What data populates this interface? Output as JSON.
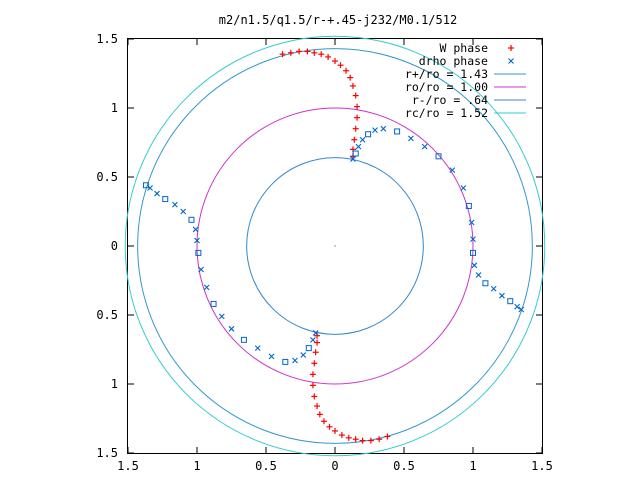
{
  "chart_data": {
    "type": "scatter",
    "title": "m2/n1.5/q1.5/r-+.45-j232/M0.1/512",
    "xlim": [
      -1.5,
      1.5
    ],
    "ylim": [
      -1.5,
      1.5
    ],
    "xticks": [
      -1.5,
      -1,
      -0.5,
      0,
      0.5,
      1,
      1.5
    ],
    "yticks": [
      -1.5,
      -1,
      -0.5,
      0,
      0.5,
      1,
      1.5
    ],
    "xtick_labels": [
      "1.5",
      "1",
      "0.5",
      "0",
      "0.5",
      "1",
      "1.5"
    ],
    "ytick_labels": [
      "1.5",
      "1",
      "0.5",
      "0",
      "0.5",
      "1",
      "1.5"
    ],
    "grid": false,
    "legend_position": "top-right",
    "circles": [
      {
        "name": "r+/ro = 1.43",
        "r": 1.43,
        "color": "#3399cc"
      },
      {
        "name": "ro/ro = 1.00",
        "r": 1.0,
        "color": "#cc33cc"
      },
      {
        "name": "r-/ro = .64",
        "r": 0.64,
        "color": "#3388cc"
      },
      {
        "name": "rc/ro = 1.52",
        "r": 1.52,
        "color": "#33cccc"
      }
    ],
    "series": [
      {
        "name": "W phase",
        "marker": "plus",
        "color": "#ff0000",
        "points": [
          [
            -0.38,
            1.39
          ],
          [
            -0.32,
            1.4
          ],
          [
            -0.26,
            1.41
          ],
          [
            -0.2,
            1.41
          ],
          [
            -0.15,
            1.4
          ],
          [
            -0.1,
            1.39
          ],
          [
            -0.05,
            1.37
          ],
          [
            0.0,
            1.34
          ],
          [
            0.04,
            1.31
          ],
          [
            0.08,
            1.27
          ],
          [
            0.11,
            1.22
          ],
          [
            0.13,
            1.16
          ],
          [
            0.15,
            1.09
          ],
          [
            0.16,
            1.01
          ],
          [
            0.16,
            0.93
          ],
          [
            0.15,
            0.85
          ],
          [
            0.14,
            0.77
          ],
          [
            0.13,
            0.7
          ],
          [
            0.13,
            0.65
          ],
          [
            0.38,
            -1.38
          ],
          [
            0.32,
            -1.4
          ],
          [
            0.26,
            -1.41
          ],
          [
            0.2,
            -1.41
          ],
          [
            0.15,
            -1.4
          ],
          [
            0.1,
            -1.39
          ],
          [
            0.05,
            -1.37
          ],
          [
            0.0,
            -1.34
          ],
          [
            -0.04,
            -1.31
          ],
          [
            -0.08,
            -1.27
          ],
          [
            -0.11,
            -1.22
          ],
          [
            -0.13,
            -1.16
          ],
          [
            -0.15,
            -1.09
          ],
          [
            -0.16,
            -1.01
          ],
          [
            -0.16,
            -0.93
          ],
          [
            -0.15,
            -0.85
          ],
          [
            -0.14,
            -0.77
          ],
          [
            -0.13,
            -0.7
          ],
          [
            -0.13,
            -0.65
          ]
        ]
      },
      {
        "name": "drho phase",
        "marker": "cross",
        "color": "#0066cc",
        "points": [
          [
            0.13,
            0.63
          ],
          [
            0.15,
            0.67
          ],
          [
            0.17,
            0.72
          ],
          [
            0.2,
            0.77
          ],
          [
            0.24,
            0.81
          ],
          [
            0.29,
            0.84
          ],
          [
            0.35,
            0.85
          ],
          [
            0.45,
            0.83
          ],
          [
            0.55,
            0.78
          ],
          [
            0.65,
            0.72
          ],
          [
            0.75,
            0.65
          ],
          [
            0.85,
            0.55
          ],
          [
            0.93,
            0.42
          ],
          [
            0.97,
            0.29
          ],
          [
            0.99,
            0.17
          ],
          [
            1.0,
            0.05
          ],
          [
            1.0,
            -0.05
          ],
          [
            1.01,
            -0.14
          ],
          [
            1.04,
            -0.21
          ],
          [
            1.09,
            -0.27
          ],
          [
            1.15,
            -0.31
          ],
          [
            1.21,
            -0.36
          ],
          [
            1.27,
            -0.4
          ],
          [
            1.32,
            -0.44
          ],
          [
            1.35,
            -0.46
          ],
          [
            -1.37,
            0.44
          ],
          [
            -1.34,
            0.42
          ],
          [
            -1.29,
            0.38
          ],
          [
            -1.23,
            0.34
          ],
          [
            -1.16,
            0.3
          ],
          [
            -1.1,
            0.25
          ],
          [
            -1.04,
            0.19
          ],
          [
            -1.01,
            0.12
          ],
          [
            -1.0,
            0.04
          ],
          [
            -0.99,
            -0.05
          ],
          [
            -0.97,
            -0.17
          ],
          [
            -0.93,
            -0.3
          ],
          [
            -0.88,
            -0.42
          ],
          [
            -0.82,
            -0.51
          ],
          [
            -0.75,
            -0.6
          ],
          [
            -0.66,
            -0.68
          ],
          [
            -0.56,
            -0.74
          ],
          [
            -0.46,
            -0.8
          ],
          [
            -0.36,
            -0.84
          ],
          [
            -0.29,
            -0.83
          ],
          [
            -0.23,
            -0.79
          ],
          [
            -0.19,
            -0.74
          ],
          [
            -0.16,
            -0.68
          ],
          [
            -0.14,
            -0.63
          ]
        ]
      }
    ]
  }
}
